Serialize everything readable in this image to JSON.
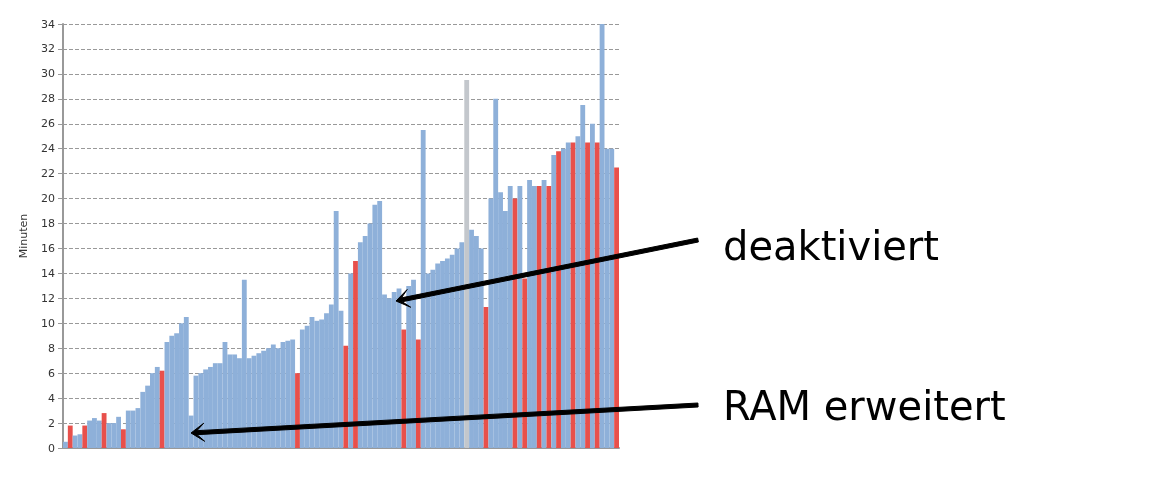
{
  "chart_data": {
    "type": "bar",
    "ylabel": "Minuten",
    "categories": [
      null,
      null,
      null,
      null,
      null,
      null,
      null,
      null,
      null,
      null,
      null,
      null,
      null,
      null,
      null,
      null,
      null,
      null,
      null,
      null,
      null,
      null,
      null,
      null,
      null,
      null,
      null,
      null,
      null,
      null,
      null,
      null,
      null,
      null,
      null,
      null,
      null,
      null,
      null,
      null,
      null,
      null,
      null,
      null,
      null,
      null,
      null,
      null,
      null,
      null,
      null,
      null,
      null,
      null,
      null,
      null,
      null,
      null,
      null,
      null,
      null,
      null,
      null,
      null,
      null,
      null,
      null,
      null,
      null,
      null,
      null,
      null,
      null,
      null,
      null,
      null,
      null,
      null,
      null,
      null,
      null,
      null,
      null,
      null,
      null,
      null,
      null,
      null,
      null,
      null,
      null,
      null,
      null,
      null,
      null,
      null,
      null,
      null,
      null,
      null,
      null,
      null,
      null,
      null,
      null,
      null,
      null,
      null,
      null,
      null,
      null,
      null,
      null,
      null,
      null
    ],
    "values": [
      0.5,
      1.8,
      1.0,
      1.1,
      1.8,
      2.2,
      2.4,
      2.2,
      2.8,
      2.0,
      2.0,
      2.5,
      1.5,
      3.0,
      3.0,
      3.2,
      4.5,
      5.0,
      6.0,
      6.5,
      6.2,
      8.5,
      9.0,
      9.2,
      10.0,
      10.5,
      2.6,
      5.8,
      6.0,
      6.3,
      6.5,
      6.8,
      6.8,
      8.5,
      7.5,
      7.5,
      7.2,
      13.5,
      7.2,
      7.4,
      7.6,
      7.8,
      8.0,
      8.3,
      8.0,
      8.5,
      8.6,
      8.7,
      6.0,
      9.5,
      9.8,
      10.5,
      10.2,
      10.3,
      10.8,
      11.5,
      19.0,
      11.0,
      8.2,
      14.0,
      15.0,
      16.5,
      17.0,
      18.0,
      19.5,
      19.8,
      12.3,
      12.0,
      12.5,
      12.8,
      9.5,
      13.0,
      13.5,
      8.7,
      25.5,
      14.0,
      14.3,
      14.8,
      15.0,
      15.2,
      15.5,
      16.0,
      16.5,
      29.5,
      17.5,
      17.0,
      16.0,
      11.3,
      20.0,
      28.0,
      20.5,
      19.0,
      21.0,
      20.0,
      21.0,
      13.6,
      21.5,
      21.0,
      21.0,
      21.5,
      21.0,
      23.5,
      23.8,
      24.0,
      24.5,
      24.5,
      25.0,
      27.5,
      24.5,
      26.0,
      24.5,
      34.0,
      24.0,
      24.0,
      22.5
    ],
    "colors": [
      "#8eb0d9",
      "#e8504b",
      "#8eb0d9",
      "#8eb0d9",
      "#e8504b",
      "#8eb0d9",
      "#8eb0d9",
      "#8eb0d9",
      "#e8504b",
      "#8eb0d9",
      "#8eb0d9",
      "#8eb0d9",
      "#e8504b",
      "#8eb0d9",
      "#8eb0d9",
      "#8eb0d9",
      "#8eb0d9",
      "#8eb0d9",
      "#8eb0d9",
      "#8eb0d9",
      "#e8504b",
      "#8eb0d9",
      "#8eb0d9",
      "#8eb0d9",
      "#8eb0d9",
      "#8eb0d9",
      "#8eb0d9",
      "#8eb0d9",
      "#8eb0d9",
      "#8eb0d9",
      "#8eb0d9",
      "#8eb0d9",
      "#8eb0d9",
      "#8eb0d9",
      "#8eb0d9",
      "#8eb0d9",
      "#8eb0d9",
      "#8eb0d9",
      "#8eb0d9",
      "#8eb0d9",
      "#8eb0d9",
      "#8eb0d9",
      "#8eb0d9",
      "#8eb0d9",
      "#8eb0d9",
      "#8eb0d9",
      "#8eb0d9",
      "#8eb0d9",
      "#e8504b",
      "#8eb0d9",
      "#8eb0d9",
      "#8eb0d9",
      "#8eb0d9",
      "#8eb0d9",
      "#8eb0d9",
      "#8eb0d9",
      "#8eb0d9",
      "#8eb0d9",
      "#e8504b",
      "#8eb0d9",
      "#e8504b",
      "#8eb0d9",
      "#8eb0d9",
      "#8eb0d9",
      "#8eb0d9",
      "#8eb0d9",
      "#8eb0d9",
      "#8eb0d9",
      "#8eb0d9",
      "#8eb0d9",
      "#e8504b",
      "#8eb0d9",
      "#8eb0d9",
      "#e8504b",
      "#8eb0d9",
      "#8eb0d9",
      "#8eb0d9",
      "#8eb0d9",
      "#8eb0d9",
      "#8eb0d9",
      "#8eb0d9",
      "#8eb0d9",
      "#8eb0d9",
      "#c3c7cc",
      "#8eb0d9",
      "#8eb0d9",
      "#8eb0d9",
      "#e8504b",
      "#8eb0d9",
      "#8eb0d9",
      "#8eb0d9",
      "#8eb0d9",
      "#8eb0d9",
      "#e8504b",
      "#8eb0d9",
      "#e8504b",
      "#8eb0d9",
      "#8eb0d9",
      "#e8504b",
      "#8eb0d9",
      "#e8504b",
      "#8eb0d9",
      "#e8504b",
      "#8eb0d9",
      "#8eb0d9",
      "#e8504b",
      "#8eb0d9",
      "#8eb0d9",
      "#e8504b",
      "#8eb0d9",
      "#e8504b",
      "#8eb0d9",
      "#8eb0d9",
      "#8eb0d9",
      "#e8504b"
    ],
    "ylim": [
      0,
      34
    ],
    "yticks": [
      0,
      2,
      4,
      6,
      8,
      10,
      12,
      14,
      16,
      18,
      20,
      22,
      24,
      26,
      28,
      30,
      32,
      34
    ],
    "grid": "y",
    "annotations": [
      "deaktiviert",
      "RAM erweitert"
    ]
  }
}
